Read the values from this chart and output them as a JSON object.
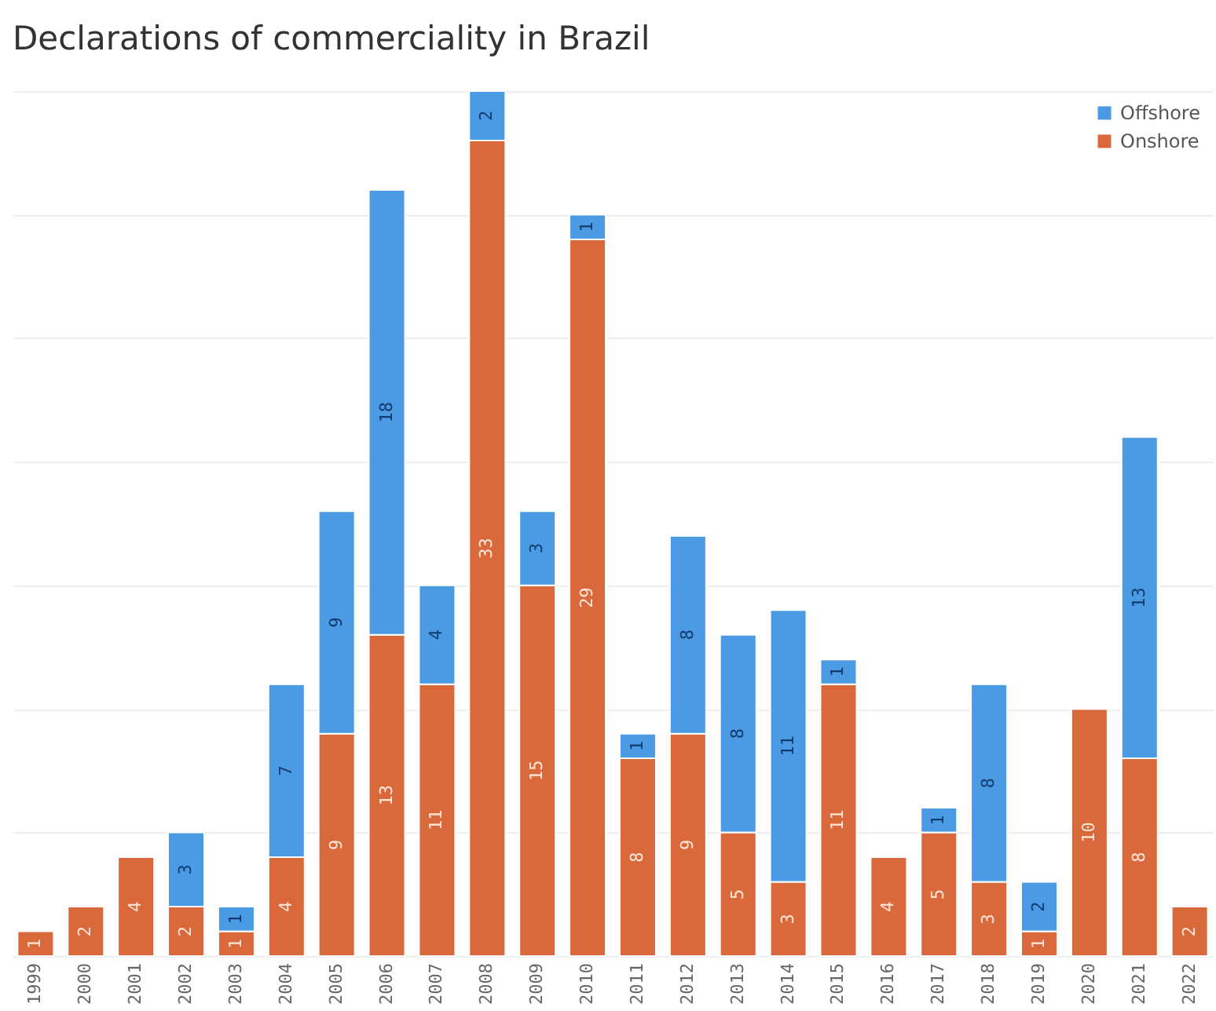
{
  "chart_data": {
    "type": "bar",
    "title": "Declarations of commerciality in Brazil",
    "stacked": true,
    "data_labels": true,
    "grid": "y",
    "legend": "top right",
    "categories": [
      "1999",
      "2000",
      "2001",
      "2002",
      "2003",
      "2004",
      "2005",
      "2006",
      "2007",
      "2008",
      "2009",
      "2010",
      "2011",
      "2012",
      "2013",
      "2014",
      "2015",
      "2016",
      "2017",
      "2018",
      "2019",
      "2020",
      "2021",
      "2022"
    ],
    "ylim": [
      0,
      35
    ],
    "yticks": [
      {
        "value": 0,
        "label": null
      },
      {
        "value": 5,
        "label": null
      },
      {
        "value": 10,
        "label": null
      },
      {
        "value": 15,
        "label": null
      },
      {
        "value": 20,
        "label": null
      },
      {
        "value": 25,
        "label": null
      },
      {
        "value": 30,
        "label": null
      },
      {
        "value": 35,
        "label": null
      }
    ],
    "tick_labels": "x",
    "series": [
      {
        "name": "Onshore",
        "color": "#d9693a",
        "values": [
          1,
          2,
          4,
          2,
          1,
          4,
          9,
          13,
          11,
          33,
          15,
          29,
          8,
          9,
          5,
          3,
          11,
          4,
          5,
          3,
          1,
          10,
          8,
          2
        ]
      },
      {
        "name": "Offshore",
        "color": "#4a9be3",
        "values": [
          null,
          null,
          null,
          3,
          1,
          7,
          9,
          18,
          4,
          2,
          3,
          1,
          1,
          8,
          8,
          11,
          1,
          null,
          1,
          8,
          2,
          null,
          13,
          null
        ]
      }
    ]
  }
}
